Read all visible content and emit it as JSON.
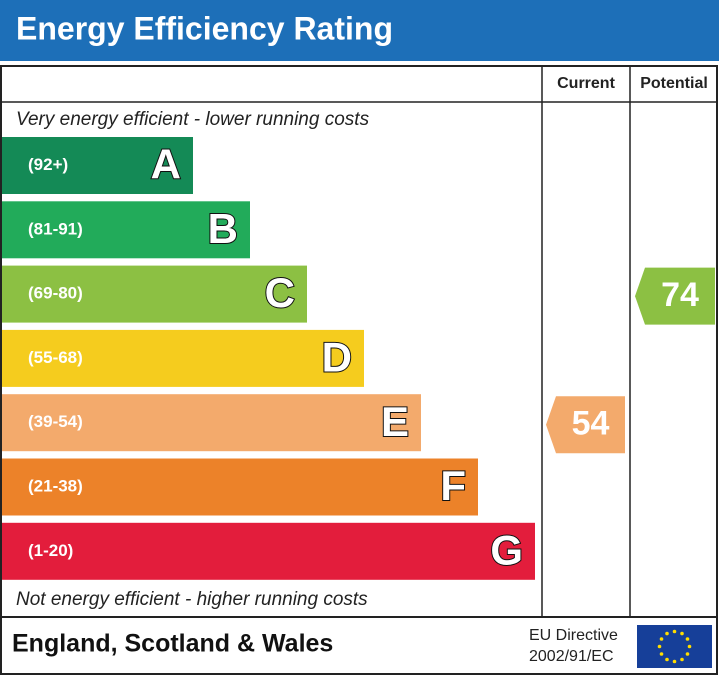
{
  "header": {
    "title": "Energy Efficiency Rating"
  },
  "columns": {
    "current": "Current",
    "potential": "Potential"
  },
  "top_note": "Very energy efficient - lower running costs",
  "bottom_note": "Not energy efficient - higher running costs",
  "bands": [
    {
      "range": "(92+)",
      "letter": "A",
      "color": "#148a56"
    },
    {
      "range": "(81-91)",
      "letter": "B",
      "color": "#22ab5a"
    },
    {
      "range": "(69-80)",
      "letter": "C",
      "color": "#8cc043"
    },
    {
      "range": "(55-68)",
      "letter": "D",
      "color": "#f5cc1e"
    },
    {
      "range": "(39-54)",
      "letter": "E",
      "color": "#f3aa6c"
    },
    {
      "range": "(21-38)",
      "letter": "F",
      "color": "#ec8229"
    },
    {
      "range": "(1-20)",
      "letter": "G",
      "color": "#e31d3c"
    }
  ],
  "current": 54,
  "potential": 74,
  "footer": {
    "region": "England, Scotland & Wales",
    "directive_line1": "EU Directive",
    "directive_line2": "2002/91/EC"
  }
}
